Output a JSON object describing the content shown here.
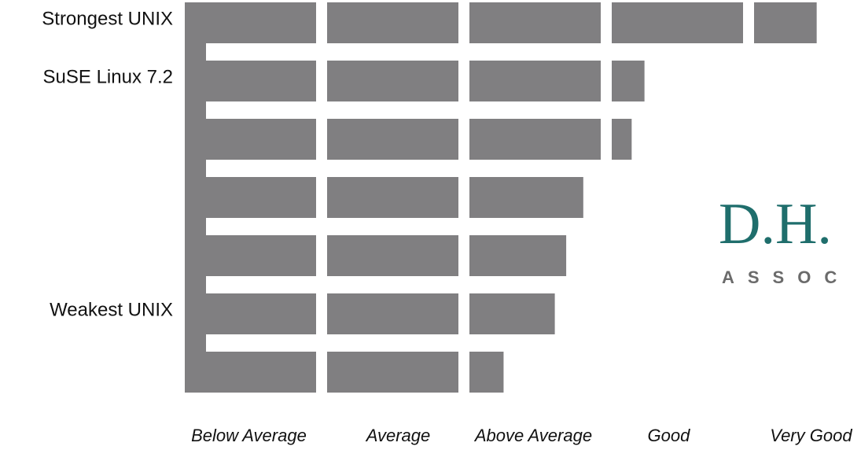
{
  "chart_data": {
    "type": "hbar",
    "categories": [
      "Strongest UNIX",
      "SuSE Linux 7.2",
      null,
      null,
      null,
      "Weakest UNIX",
      null
    ],
    "values": [
      4.44,
      3.23,
      3.14,
      2.8,
      2.68,
      2.6,
      2.24
    ],
    "color": "#807f81",
    "xlim": [
      0,
      5
    ],
    "xticks": [
      {
        "value": 0.45,
        "label": "Below Average"
      },
      {
        "value": 1.5,
        "label": "Average"
      },
      {
        "value": 2.45,
        "label": "Above Average"
      },
      {
        "value": 3.4,
        "label": "Good"
      },
      {
        "value": 4.4,
        "label": "Very Good"
      }
    ],
    "grid": false
  },
  "logo": {
    "name": "D.H.",
    "tagline": "ASSOC"
  }
}
